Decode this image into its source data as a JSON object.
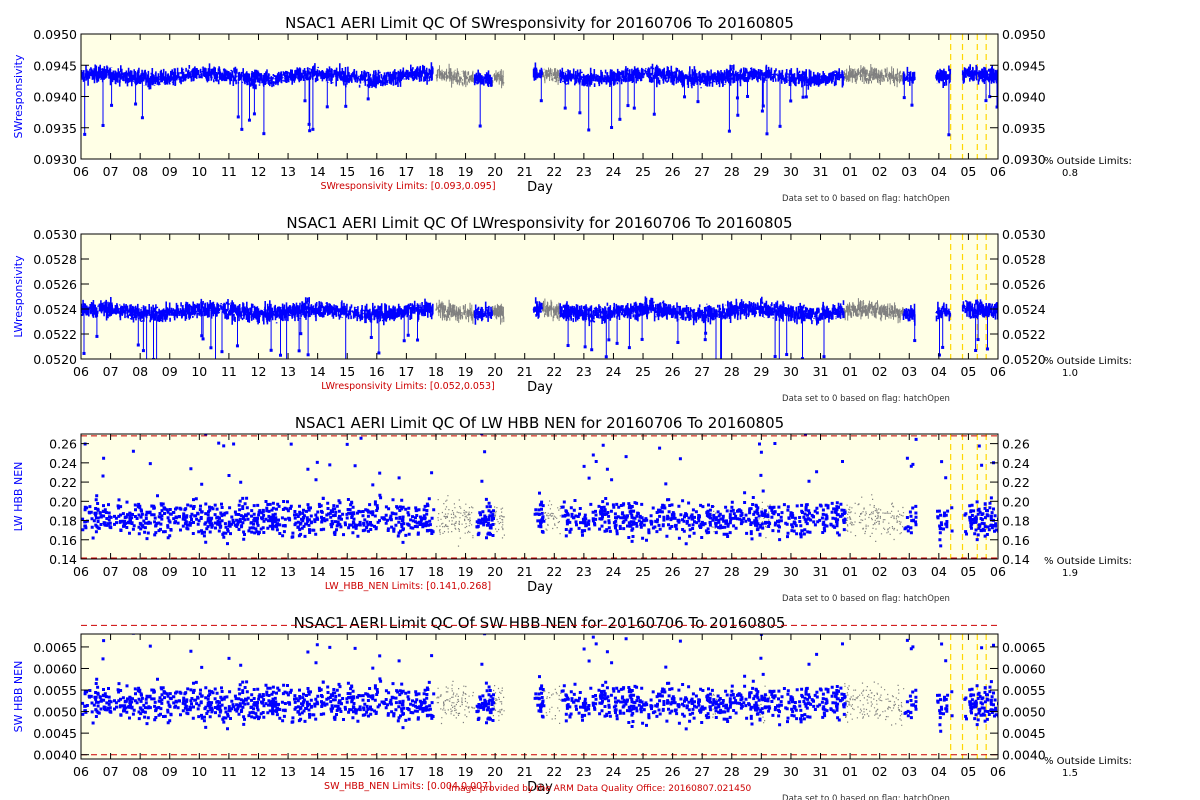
{
  "footer": "Image provided by the ARM Data Quality Office: 20160807.021450",
  "colors": {
    "background": "#ffffe6",
    "good": "#0000ff",
    "flagged": "#808080",
    "limit_line": "#cc0000",
    "flag_marker": "#ffd700",
    "outside_text": "#000000"
  },
  "chart_data": [
    {
      "type": "scatter",
      "title": "NSAC1 AERI Limit QC Of SWresponsivity for 20160706 To 20160805",
      "ylabel": "SWresponsivity",
      "xlabel": "Day",
      "limits_label": "SWresponsivity Limits: [0.093,0.095]",
      "limits": [
        0.093,
        0.095
      ],
      "ylim": [
        0.093,
        0.095
      ],
      "yticks": [
        "0.0930",
        "0.0935",
        "0.0940",
        "0.0945",
        "0.0950"
      ],
      "xticks": [
        "06",
        "07",
        "08",
        "09",
        "10",
        "11",
        "12",
        "13",
        "14",
        "15",
        "16",
        "17",
        "18",
        "19",
        "20",
        "21",
        "22",
        "23",
        "24",
        "25",
        "26",
        "27",
        "28",
        "29",
        "30",
        "31",
        "01",
        "02",
        "03",
        "04",
        "05",
        "06"
      ],
      "outside_label": "% Outside Limits:",
      "outside_value": "0.8",
      "flag_note": "Data set to 0 based on flag: hatchOpen",
      "render": "line",
      "band": {
        "center": 0.09432,
        "half": 0.00026
      },
      "gray_segments": [
        [
          16.0,
          17.3
        ],
        [
          17.9,
          18.3
        ],
        [
          19.6,
          20.2
        ],
        [
          25.3,
          25.5
        ],
        [
          26.9,
          27.3
        ],
        [
          29.8,
          31.8
        ]
      ],
      "blue_segments": [
        [
          0.0,
          15.9
        ],
        [
          17.3,
          17.9
        ],
        [
          19.3,
          19.6
        ],
        [
          20.2,
          29.8
        ],
        [
          31.8,
          32.2
        ],
        [
          32.9,
          33.4
        ],
        [
          33.8,
          35.0
        ]
      ],
      "gaps": [
        [
          18.3,
          19.3
        ],
        [
          33.4,
          33.8
        ]
      ],
      "flag_days": [
        33.4,
        33.8,
        34.3,
        34.6
      ]
    },
    {
      "type": "scatter",
      "title": "NSAC1 AERI Limit QC Of LWresponsivity for 20160706 To 20160805",
      "ylabel": "LWresponsivity",
      "xlabel": "Day",
      "limits_label": "LWresponsivity Limits: [0.052,0.053]",
      "limits": [
        0.052,
        0.053
      ],
      "ylim": [
        0.052,
        0.053
      ],
      "yticks": [
        "0.0520",
        "0.0522",
        "0.0524",
        "0.0526",
        "0.0528",
        "0.0530"
      ],
      "xticks": [
        "06",
        "07",
        "08",
        "09",
        "10",
        "11",
        "12",
        "13",
        "14",
        "15",
        "16",
        "17",
        "18",
        "19",
        "20",
        "21",
        "22",
        "23",
        "24",
        "25",
        "26",
        "27",
        "28",
        "29",
        "30",
        "31",
        "01",
        "02",
        "03",
        "04",
        "05",
        "06"
      ],
      "outside_label": "% Outside Limits:",
      "outside_value": "1.0",
      "flag_note": "Data set to 0 based on flag: hatchOpen",
      "render": "line",
      "band": {
        "center": 0.05238,
        "half": 0.00014
      },
      "gray_segments": [
        [
          16.0,
          17.3
        ],
        [
          17.9,
          18.3
        ],
        [
          19.6,
          20.2
        ],
        [
          25.3,
          25.5
        ],
        [
          26.9,
          27.3
        ],
        [
          29.8,
          31.8
        ]
      ],
      "blue_segments": [
        [
          0.0,
          15.9
        ],
        [
          17.3,
          17.9
        ],
        [
          19.3,
          19.6
        ],
        [
          20.2,
          29.8
        ],
        [
          31.8,
          32.2
        ],
        [
          32.9,
          33.4
        ],
        [
          33.8,
          35.0
        ]
      ],
      "gaps": [
        [
          18.3,
          19.3
        ],
        [
          33.4,
          33.8
        ]
      ],
      "flag_days": [
        33.4,
        33.8,
        34.3,
        34.6
      ]
    },
    {
      "type": "scatter",
      "title": "NSAC1 AERI Limit QC Of LW HBB NEN for 20160706 To 20160805",
      "ylabel": "LW HBB NEN",
      "xlabel": "Day",
      "limits_label": "LW_HBB_NEN Limits: [0.141,0.268]",
      "limits": [
        0.141,
        0.268
      ],
      "ylim": [
        0.14,
        0.27
      ],
      "yticks": [
        "0.14",
        "0.16",
        "0.18",
        "0.20",
        "0.22",
        "0.24",
        "0.26"
      ],
      "xticks": [
        "06",
        "07",
        "08",
        "09",
        "10",
        "11",
        "12",
        "13",
        "14",
        "15",
        "16",
        "17",
        "18",
        "19",
        "20",
        "21",
        "22",
        "23",
        "24",
        "25",
        "26",
        "27",
        "28",
        "29",
        "30",
        "31",
        "01",
        "02",
        "03",
        "04",
        "05",
        "06"
      ],
      "outside_label": "% Outside Limits:",
      "outside_value": "1.9",
      "flag_note": "Data set to 0 based on flag: hatchOpen",
      "render": "dots",
      "band": {
        "center": 0.182,
        "half": 0.026
      },
      "gray_segments": [
        [
          16.0,
          17.3
        ],
        [
          17.9,
          18.3
        ],
        [
          19.6,
          20.2
        ],
        [
          25.3,
          25.5
        ],
        [
          26.9,
          27.3
        ],
        [
          29.8,
          31.8
        ]
      ],
      "blue_segments": [
        [
          0.0,
          15.9
        ],
        [
          17.3,
          17.9
        ],
        [
          19.3,
          19.6
        ],
        [
          20.2,
          29.8
        ],
        [
          31.8,
          32.2
        ],
        [
          32.9,
          33.4
        ],
        [
          33.8,
          35.0
        ]
      ],
      "gaps": [
        [
          18.3,
          19.3
        ],
        [
          33.4,
          33.8
        ]
      ],
      "flag_days": [
        33.4,
        33.8,
        34.3,
        34.6
      ]
    },
    {
      "type": "scatter",
      "title": "NSAC1 AERI Limit QC Of SW HBB NEN for 20160706 To 20160805",
      "ylabel": "SW HBB NEN",
      "xlabel": "Day",
      "limits_label": "SW_HBB_NEN Limits: [0.004,0.007]",
      "limits": [
        0.004,
        0.007
      ],
      "ylim": [
        0.0039,
        0.0068
      ],
      "yticks": [
        "0.0040",
        "0.0045",
        "0.0050",
        "0.0055",
        "0.0060",
        "0.0065"
      ],
      "xticks": [
        "06",
        "07",
        "08",
        "09",
        "10",
        "11",
        "12",
        "13",
        "14",
        "15",
        "16",
        "17",
        "18",
        "19",
        "20",
        "21",
        "22",
        "23",
        "24",
        "25",
        "26",
        "27",
        "28",
        "29",
        "30",
        "31",
        "01",
        "02",
        "03",
        "04",
        "05",
        "06"
      ],
      "outside_label": "% Outside Limits:",
      "outside_value": "1.5",
      "flag_note": "Data set to 0 based on flag: hatchOpen",
      "render": "dots",
      "band": {
        "center": 0.0052,
        "half": 0.0006
      },
      "gray_segments": [
        [
          16.0,
          17.3
        ],
        [
          17.9,
          18.3
        ],
        [
          19.6,
          20.2
        ],
        [
          25.3,
          25.5
        ],
        [
          26.9,
          27.3
        ],
        [
          29.8,
          31.8
        ]
      ],
      "blue_segments": [
        [
          0.0,
          15.9
        ],
        [
          17.3,
          17.9
        ],
        [
          19.3,
          19.6
        ],
        [
          20.2,
          29.8
        ],
        [
          31.8,
          32.2
        ],
        [
          32.9,
          33.4
        ],
        [
          33.8,
          35.0
        ]
      ],
      "gaps": [
        [
          18.3,
          19.3
        ],
        [
          33.4,
          33.8
        ]
      ],
      "flag_days": [
        33.4,
        33.8,
        34.3,
        34.6
      ]
    }
  ]
}
